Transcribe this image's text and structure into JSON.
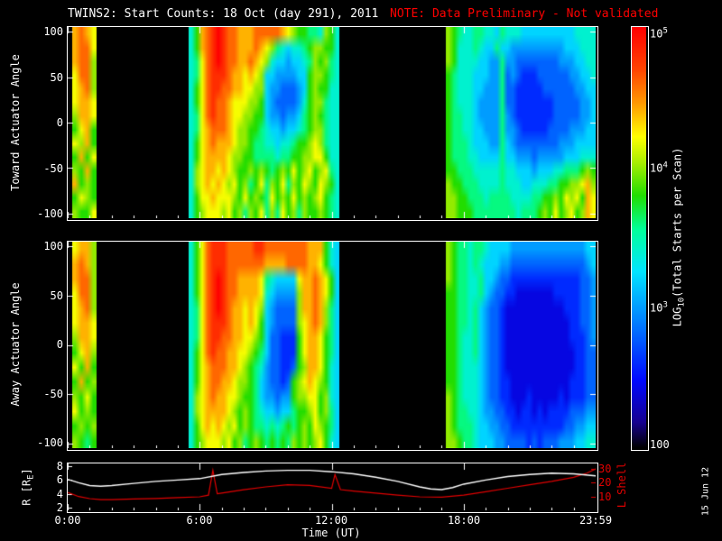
{
  "title": {
    "main": "TWINS2: Start Counts: 18 Oct (day 291), 2011",
    "note": "NOTE: Data Preliminary - Not validated"
  },
  "datestamp": "15 Jun 12",
  "colors": {
    "background": "#000000",
    "foreground": "#ffffff",
    "note_red": "#ff0000",
    "lshell_red": "#e00000"
  },
  "axes": {
    "toward_label": "Toward Actuator Angle",
    "away_label": "Away Actuator Angle",
    "r_label_prefix": "R [R",
    "r_label_sub": "E",
    "r_label_suffix": "]",
    "lshell_label": "L Shell",
    "xlabel": "Time (UT)",
    "angle_ticks": [
      "100",
      "50",
      "0",
      "-50",
      "-100"
    ],
    "time_ticks": [
      "0:00",
      "6:00",
      "12:00",
      "18:00",
      "23:59"
    ],
    "r_ticks": [
      "8",
      "6",
      "4",
      "2"
    ],
    "lshell_ticks": [
      "30",
      "20",
      "10"
    ]
  },
  "colorbar": {
    "title_prefix": "LOG",
    "title_sub": "10",
    "title_suffix": "(Total Starts per Scan)",
    "tick_top": {
      "base": "10",
      "exp": "5"
    },
    "tick_mid": {
      "base": "10",
      "exp": "4"
    },
    "tick_low": {
      "base": "10",
      "exp": "3"
    },
    "tick_bottom": "100"
  },
  "chart_data": {
    "type": "heatmap",
    "title": "TWINS2: Start Counts: 18 Oct (day 291), 2011",
    "x_range_hours": [
      0,
      24
    ],
    "angle_range": [
      -100,
      100
    ],
    "value_scale": {
      "min_log10": 2,
      "max_log10": 5,
      "label": "LOG10(Total Starts per Scan)"
    },
    "colormap_stops": [
      [
        0.0,
        "#000000"
      ],
      [
        0.06,
        "#16008f"
      ],
      [
        0.16,
        "#0008ff"
      ],
      [
        0.3,
        "#0080ff"
      ],
      [
        0.42,
        "#00e5ff"
      ],
      [
        0.52,
        "#00ff99"
      ],
      [
        0.6,
        "#22dd00"
      ],
      [
        0.68,
        "#aaee00"
      ],
      [
        0.74,
        "#ffff00"
      ],
      [
        0.82,
        "#ff9900"
      ],
      [
        0.9,
        "#ff4400"
      ],
      [
        1.0,
        "#ff0000"
      ]
    ],
    "panels": [
      {
        "name": "toward",
        "ylabel": "Toward Actuator Angle",
        "blocks": [
          {
            "t0": 0.2,
            "t1": 1.3,
            "rows": [
              "cdcb",
              "cddb",
              "cdda",
              "bdda",
              "bcda",
              "bccb",
              "accb",
              "9bc9",
              "bac9",
              "9c9b",
              "a9c9",
              "c9a9",
              "9ba9",
              "a99b"
            ]
          },
          {
            "t0": 5.5,
            "t1": 12.35,
            "rows": [
              "79cdefeddcccdddddcba99887a97",
              "79cdefeddcccdcba8767789aa997",
              "78bdefeddccdcba76656678a9a87",
              "78bdeeedccbcba665555669aa987",
              "79bdeeddccbbaa655444569a9977",
              "79bdeddcbbbaa9654444579aa877",
              "78bdeddcbbaa99655455689a9877",
              "78bcdddcbaa998766566789aa877",
              "79bcdcccbaa98877677899aba877",
              "79bccccbaa99888878899aabb977",
              "7abccbcba99a9a989a9b9ab9ab87",
              "7abcbcbab9a89b8a9b8a9ba9ba97",
              "79bbcbbba9b9a98b9a9b9a9ab987",
              "79abbbab9a8a9b8a8b9a8a99a987"
            ]
          },
          {
            "t0": 17.2,
            "t1": 24.0,
            "rows": [
              "a987788776877766666666667777",
              "a977787668665555555555666777",
              "a977776655855444444445556677",
              "9877766655845433344444455667",
              "9877766555844333334444445566",
              "9877765555844333333344444556",
              "9887765555854333333344444556",
              "9887766555855433333444455566",
              "9888766655865444444445556666",
              "9888776666866555455555666777",
              "99888777778776665666778889a9",
              "a9988877778777667778899aabca",
              "aa998887888877778899a9bab9cb",
              "aa9998888888878889a9b9ab9acb"
            ]
          }
        ]
      },
      {
        "name": "away",
        "ylabel": "Away Actuator Angle",
        "blocks": [
          {
            "t0": 0.2,
            "t1": 1.3,
            "rows": [
              "bcca",
              "cdca",
              "cdda",
              "bdda",
              "bcda",
              "bccb",
              "accb",
              "9bca",
              "b9c9",
              "9c9a",
              "a9b9",
              "b9a9",
              "9a9a",
              "a989"
            ]
          },
          {
            "t0": 5.5,
            "t1": 12.35,
            "rows": [
              "79bdeeedddddeeddddddddccc976",
              "79bdeeedddddddccccddddccb976",
              "79bdefeddccccb876666bccdcb96",
              "79bdefeddccccb765555accdcb96",
              "78bdefedccbcba654444accdca86",
              "78bdeeedccbcb9654444abcdca86",
              "78bdeeddccbba96443339bccb986",
              "79bdeddccbba986443339bccb986",
              "79bcdddccba9875443349accb976",
              "79bcddccbaa986544349abcba976",
              "7abcdccbba9986554559aabb9a76",
              "7abccccba9a98766566899ab9a86",
              "79bcbcbab9a9887878989a9ba986",
              "79abbbab9a89a989898a9a9ab976"
            ]
          },
          {
            "t0": 17.2,
            "t1": 24.0,
            "rows": [
              "a988788766665555555555555566",
              "a988787666554444444444444456",
              "a988778665443333333333333445",
              "9988778654433222222233333445",
              "9988786544322222222222333445",
              "9988786544322222222222233445",
              "9987786544322222222222233345",
              "9987786544322222222222223344",
              "9987776544322222222222223344",
              "9987776544332222222222233344",
              "a987776544332223222223233344",
              "a988776554433233232333344455",
              "a988876655443333333333445566",
              "aa98876665544443434445556677"
            ]
          }
        ]
      }
    ],
    "line_panel": {
      "r": {
        "name": "R [RE]",
        "color": "#ffffff",
        "axis_range": [
          2,
          8
        ],
        "draw_range": [
          1.6,
          8.4
        ],
        "ticks": [
          2,
          4,
          6,
          8
        ],
        "points": [
          [
            0,
            6.1
          ],
          [
            0.5,
            5.6
          ],
          [
            1,
            5.2
          ],
          [
            1.5,
            5.1
          ],
          [
            2,
            5.2
          ],
          [
            3,
            5.5
          ],
          [
            4,
            5.8
          ],
          [
            5,
            6.0
          ],
          [
            6,
            6.2
          ],
          [
            7,
            6.8
          ],
          [
            8,
            7.1
          ],
          [
            9,
            7.3
          ],
          [
            10,
            7.4
          ],
          [
            11,
            7.4
          ],
          [
            12,
            7.2
          ],
          [
            13,
            6.9
          ],
          [
            14,
            6.4
          ],
          [
            15,
            5.8
          ],
          [
            16,
            5.0
          ],
          [
            16.5,
            4.7
          ],
          [
            17,
            4.6
          ],
          [
            17.5,
            4.9
          ],
          [
            18,
            5.4
          ],
          [
            19,
            6.0
          ],
          [
            20,
            6.5
          ],
          [
            21,
            6.8
          ],
          [
            22,
            7.0
          ],
          [
            23,
            6.9
          ],
          [
            24,
            6.6
          ]
        ]
      },
      "lshell": {
        "name": "L Shell",
        "color": "#e00000",
        "axis_range": [
          0,
          34
        ],
        "draw_range": [
          0,
          34
        ],
        "ticks": [
          10,
          20,
          30
        ],
        "points": [
          [
            0,
            13
          ],
          [
            0.5,
            10
          ],
          [
            1,
            8.5
          ],
          [
            1.5,
            7.8
          ],
          [
            2,
            7.8
          ],
          [
            3,
            8.2
          ],
          [
            4,
            8.6
          ],
          [
            5,
            9.2
          ],
          [
            6,
            9.8
          ],
          [
            6.4,
            11
          ],
          [
            6.6,
            29
          ],
          [
            6.8,
            12
          ],
          [
            7,
            12.5
          ],
          [
            8,
            15
          ],
          [
            9,
            17
          ],
          [
            10,
            18.5
          ],
          [
            11,
            18
          ],
          [
            12,
            16
          ],
          [
            12.15,
            26
          ],
          [
            12.4,
            15
          ],
          [
            13,
            14
          ],
          [
            14,
            12.5
          ],
          [
            15,
            11
          ],
          [
            16,
            9.8
          ],
          [
            17,
            9.5
          ],
          [
            18,
            11
          ],
          [
            19,
            13.5
          ],
          [
            20,
            16
          ],
          [
            21,
            18.5
          ],
          [
            22,
            21
          ],
          [
            23,
            24
          ],
          [
            23.6,
            27
          ],
          [
            24,
            30
          ]
        ]
      }
    }
  }
}
